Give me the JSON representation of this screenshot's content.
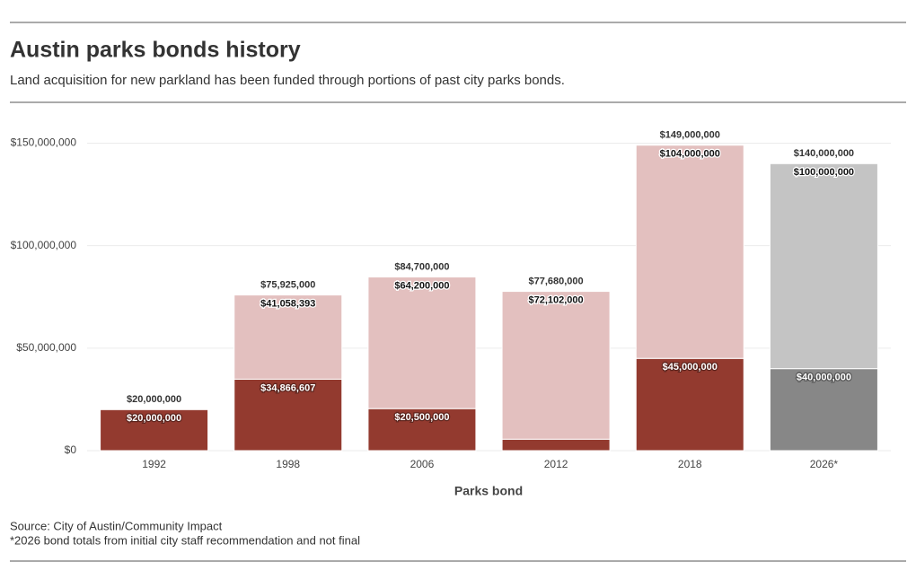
{
  "chart_data": {
    "type": "stacked_bar",
    "title": "Austin parks bonds history",
    "subtitle": "Land acquisition for new parkland has been funded through portions of past city parks bonds.",
    "x_label": "Parks bond",
    "source": "Source: City of Austin/Community Impact",
    "note": "*2026 bond totals from initial city staff recommendation and not final",
    "categories": [
      "1992",
      "1998",
      "2006",
      "2012",
      "2018",
      "2026*"
    ],
    "series": [
      {
        "colors": [
          "#933a2f",
          "#933a2f",
          "#933a2f",
          "#933a2f",
          "#933a2f",
          "#878787"
        ],
        "values": [
          20000000,
          34866607,
          20500000,
          5578000,
          45000000,
          40000000
        ],
        "value_labels": [
          "$20,000,000",
          "$34,866,607",
          "$20,500,000",
          null,
          "$45,000,000",
          "$40,000,000"
        ]
      },
      {
        "colors": [
          "#e3c0bf",
          "#e3c0bf",
          "#e3c0bf",
          "#e3c0bf",
          "#e3c0bf",
          "#c4c4c4"
        ],
        "values": [
          null,
          41058393,
          64200000,
          72102000,
          104000000,
          100000000
        ],
        "value_labels": [
          null,
          "$41,058,393",
          "$64,200,000",
          "$72,102,000",
          "$104,000,000",
          "$100,000,000"
        ]
      }
    ],
    "totals": {
      "values": [
        20000000,
        75925000,
        84700000,
        77680000,
        149000000,
        140000000
      ],
      "value_labels": [
        "$20,000,000",
        "$75,925,000",
        "$84,700,000",
        "$77,680,000",
        "$149,000,000",
        "$140,000,000"
      ]
    },
    "ylim": [
      0,
      160000000
    ],
    "yticks": [
      {
        "value": 0,
        "label": "$0"
      },
      {
        "value": 50000000,
        "label": "$50,000,000"
      },
      {
        "value": 100000000,
        "label": "$100,000,000"
      },
      {
        "value": 150000000,
        "label": "$150,000,000"
      }
    ],
    "grid": true
  }
}
